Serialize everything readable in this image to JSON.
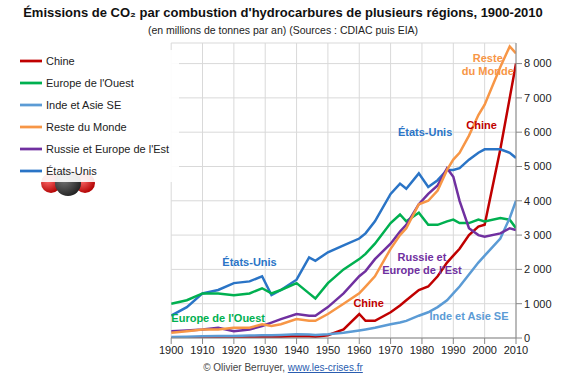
{
  "chart_data": {
    "type": "line",
    "title": "Émissions de CO₂ par combustion d'hydrocarbures de plusieurs régions, 1900-2010",
    "subtitle": "(en millions de tonnes par an) (Sources : CDIAC puis EIA)",
    "credit": [
      "© Olivier Berruyer,",
      "www.les-crises.fr"
    ],
    "x": [
      1900,
      1905,
      1910,
      1915,
      1920,
      1925,
      1929,
      1932,
      1935,
      1940,
      1944,
      1946,
      1950,
      1955,
      1960,
      1962,
      1965,
      1970,
      1973,
      1975,
      1979,
      1982,
      1985,
      1988,
      1990,
      1992,
      1995,
      1998,
      2000,
      2005,
      2008,
      2010
    ],
    "series": [
      {
        "name": "Chine",
        "color": "#c00000",
        "values": [
          0,
          0,
          10,
          20,
          20,
          25,
          30,
          30,
          40,
          60,
          50,
          40,
          80,
          250,
          700,
          500,
          500,
          750,
          950,
          1100,
          1400,
          1500,
          1800,
          2200,
          2400,
          2600,
          3000,
          3250,
          3300,
          5500,
          7000,
          8000
        ]
      },
      {
        "name": "États-Unis",
        "color": "#2a74c6",
        "values": [
          650,
          900,
          1300,
          1400,
          1600,
          1650,
          1800,
          1250,
          1400,
          1700,
          2350,
          2250,
          2500,
          2700,
          2900,
          3050,
          3400,
          4200,
          4500,
          4350,
          4800,
          4400,
          4600,
          4900,
          4900,
          4950,
          5200,
          5400,
          5500,
          5500,
          5400,
          5250
        ]
      },
      {
        "name": "Europe de l'Ouest",
        "color": "#00b050",
        "values": [
          1000,
          1100,
          1300,
          1300,
          1250,
          1300,
          1450,
          1300,
          1400,
          1600,
          1300,
          1150,
          1600,
          2000,
          2300,
          2450,
          2750,
          3350,
          3600,
          3400,
          3650,
          3300,
          3300,
          3400,
          3450,
          3350,
          3350,
          3450,
          3400,
          3500,
          3450,
          3200
        ]
      },
      {
        "name": "Inde et Asie SE",
        "color": "#5b9bd5",
        "values": [
          30,
          40,
          50,
          60,
          60,
          70,
          80,
          80,
          90,
          110,
          100,
          90,
          110,
          150,
          220,
          250,
          300,
          400,
          450,
          500,
          650,
          750,
          900,
          1100,
          1300,
          1500,
          1850,
          2200,
          2400,
          2900,
          3500,
          4000
        ]
      },
      {
        "name": "Russie et Europe de l'Est",
        "color": "#7030a0",
        "values": [
          200,
          220,
          250,
          300,
          200,
          250,
          350,
          450,
          550,
          700,
          650,
          650,
          900,
          1300,
          1800,
          1950,
          2300,
          2750,
          3100,
          3300,
          3900,
          4200,
          4450,
          4950,
          4700,
          4000,
          3200,
          3000,
          2950,
          3050,
          3200,
          3150
        ]
      },
      {
        "name": "Reste du Monde",
        "color": "#f79646",
        "values": [
          150,
          200,
          250,
          250,
          300,
          300,
          400,
          350,
          400,
          550,
          500,
          500,
          700,
          1000,
          1300,
          1500,
          1800,
          2600,
          3000,
          3200,
          3900,
          4000,
          4300,
          4900,
          5200,
          5400,
          5900,
          6500,
          6800,
          7900,
          8500,
          8300
        ]
      }
    ],
    "xlim": [
      1900,
      2010
    ],
    "xticks": [
      1900,
      1910,
      1920,
      1930,
      1940,
      1950,
      1960,
      1970,
      1980,
      1990,
      2000,
      2010
    ],
    "ylim": [
      0,
      8600
    ],
    "yticks": [
      0,
      {
        "value": 1000,
        "label": "1 000"
      },
      {
        "value": 2000,
        "label": "2 000"
      },
      {
        "value": 3000,
        "label": "3 000"
      },
      {
        "value": 4000,
        "label": "4 000"
      },
      {
        "value": 5000,
        "label": "5 000"
      },
      {
        "value": 6000,
        "label": "6 000"
      },
      {
        "value": 7000,
        "label": "7 000"
      },
      {
        "value": 8000,
        "label": "8 000"
      }
    ],
    "grid": true,
    "legend": "upper left",
    "annotations": [
      {
        "text": [
          "Reste",
          "du Monde"
        ],
        "x": 2001,
        "y": 8050,
        "color": "#f79646"
      },
      {
        "text": [
          "Chine"
        ],
        "x": 1999,
        "y": 6100,
        "color": "#c00000"
      },
      {
        "text": [
          "États-Unis"
        ],
        "x": 1981,
        "y": 5900,
        "color": "#2a74c6"
      },
      {
        "text": [
          "États-Unis"
        ],
        "x": 1925,
        "y": 2100,
        "color": "#2a74c6"
      },
      {
        "text": [
          "Europe de l'Ouest"
        ],
        "x": 1915,
        "y": 480,
        "color": "#00b050"
      },
      {
        "text": [
          "Russie et",
          "Europe de l'Est"
        ],
        "x": 1980,
        "y": 2250,
        "color": "#7030a0"
      },
      {
        "text": [
          "Chine"
        ],
        "x": 1963,
        "y": 900,
        "color": "#c00000"
      },
      {
        "text": [
          "Inde et Asie SE"
        ],
        "x": 1995,
        "y": 520,
        "color": "#5b9bd5"
      }
    ]
  }
}
